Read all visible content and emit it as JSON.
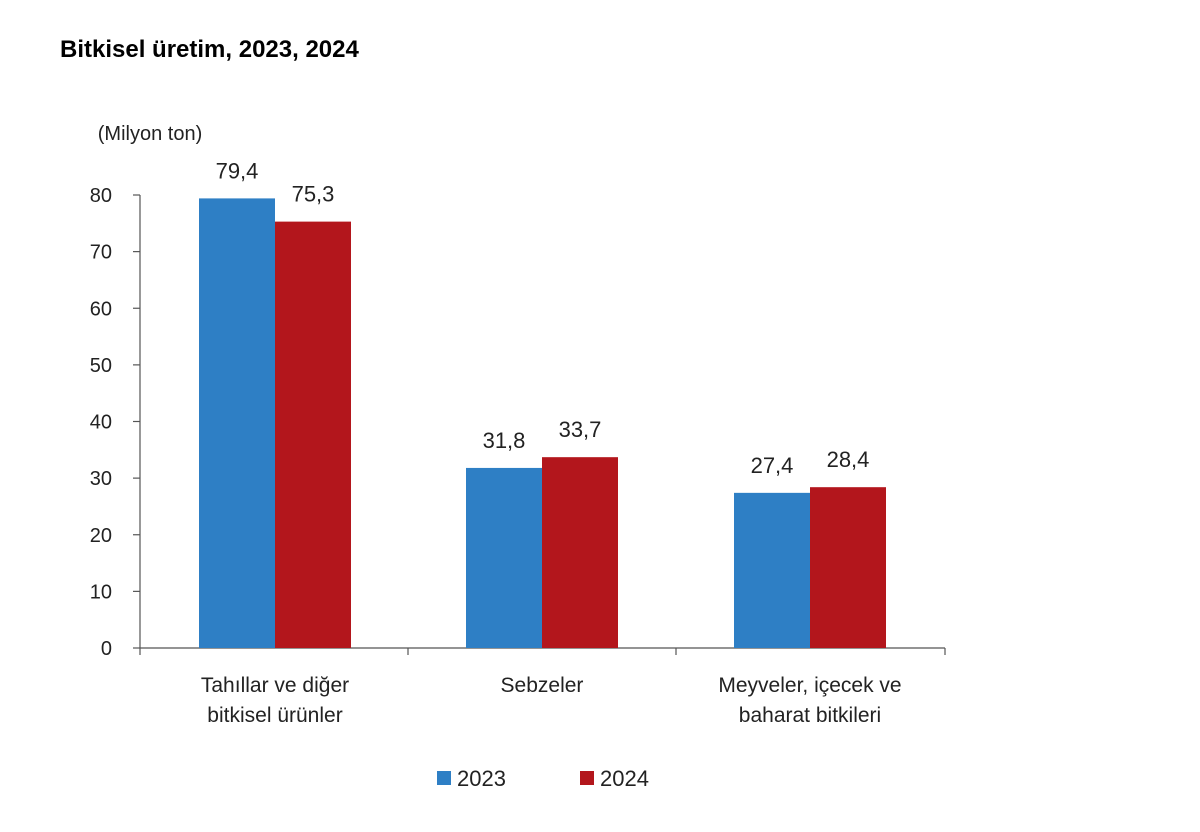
{
  "title": "Bitkisel üretim, 2023, 2024",
  "chart_data": {
    "type": "bar",
    "title": "Bitkisel üretim, 2023, 2024",
    "unit_label": "(Milyon ton)",
    "xlabel": "",
    "ylabel": "",
    "ylim": [
      0,
      80
    ],
    "yticks": [
      0,
      10,
      20,
      30,
      40,
      50,
      60,
      70,
      80
    ],
    "grid": false,
    "legend_position": "bottom",
    "categories": [
      [
        "Tahıllar ve diğer",
        "bitkisel ürünler"
      ],
      [
        "Sebzeler"
      ],
      [
        "Meyveler, içecek ve",
        "baharat  bitkileri"
      ]
    ],
    "series": [
      {
        "name": "2023",
        "color": "#2e7fc5",
        "values": [
          79.4,
          31.8,
          27.4
        ],
        "labels": [
          "79,4",
          "31,8",
          "27,4"
        ]
      },
      {
        "name": "2024",
        "color": "#b3161c",
        "values": [
          75.3,
          33.7,
          28.4
        ],
        "labels": [
          "75,3",
          "33,7",
          "28,4"
        ]
      }
    ]
  }
}
